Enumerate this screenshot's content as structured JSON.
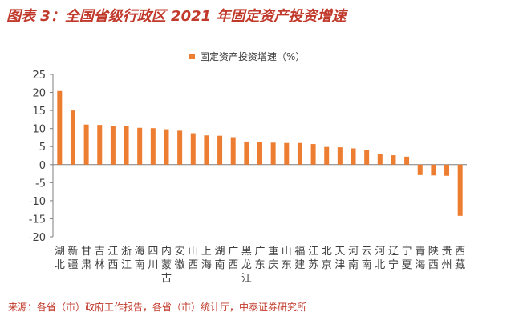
{
  "header": {
    "title": "图表 3：全国省级行政区 2021 年固定资产投资增速"
  },
  "footer": {
    "source": "来源：各省（市）政府工作报告，各省（市）统计厅，中泰证券研究所"
  },
  "colors": {
    "accent": "#c0392b",
    "bar": "#ed7d31",
    "axis": "#7f7f7f",
    "text": "#404040"
  },
  "chart_data": {
    "type": "bar",
    "title": "",
    "xlabel": "",
    "ylabel": "",
    "legend": {
      "position": "top",
      "entries": [
        "固定资产投资增速（%）"
      ]
    },
    "grid": false,
    "ylim": [
      -20,
      25
    ],
    "yticks": [
      25,
      20,
      15,
      10,
      5,
      0,
      -5,
      -10,
      -15,
      -20
    ],
    "categories": [
      "湖北",
      "新疆",
      "甘肃",
      "吉林",
      "江西",
      "浙江",
      "海南",
      "四川",
      "内蒙古",
      "安徽",
      "山西",
      "上海",
      "湖南",
      "广西",
      "黑龙江",
      "广东",
      "重庆",
      "山东",
      "福建",
      "江苏",
      "北京",
      "天津",
      "河南",
      "云南",
      "河北",
      "辽宁",
      "宁夏",
      "青海",
      "陕西",
      "贵州",
      "西藏"
    ],
    "series": [
      {
        "name": "固定资产投资增速（%）",
        "values": [
          20.4,
          15.0,
          11.1,
          11.0,
          10.8,
          10.8,
          10.2,
          10.1,
          9.8,
          9.4,
          8.7,
          8.1,
          8.0,
          7.6,
          6.4,
          6.3,
          6.1,
          6.0,
          6.0,
          5.7,
          4.9,
          4.8,
          4.5,
          4.0,
          3.0,
          2.6,
          2.2,
          -2.9,
          -3.0,
          -3.1,
          -14.2
        ]
      }
    ]
  }
}
